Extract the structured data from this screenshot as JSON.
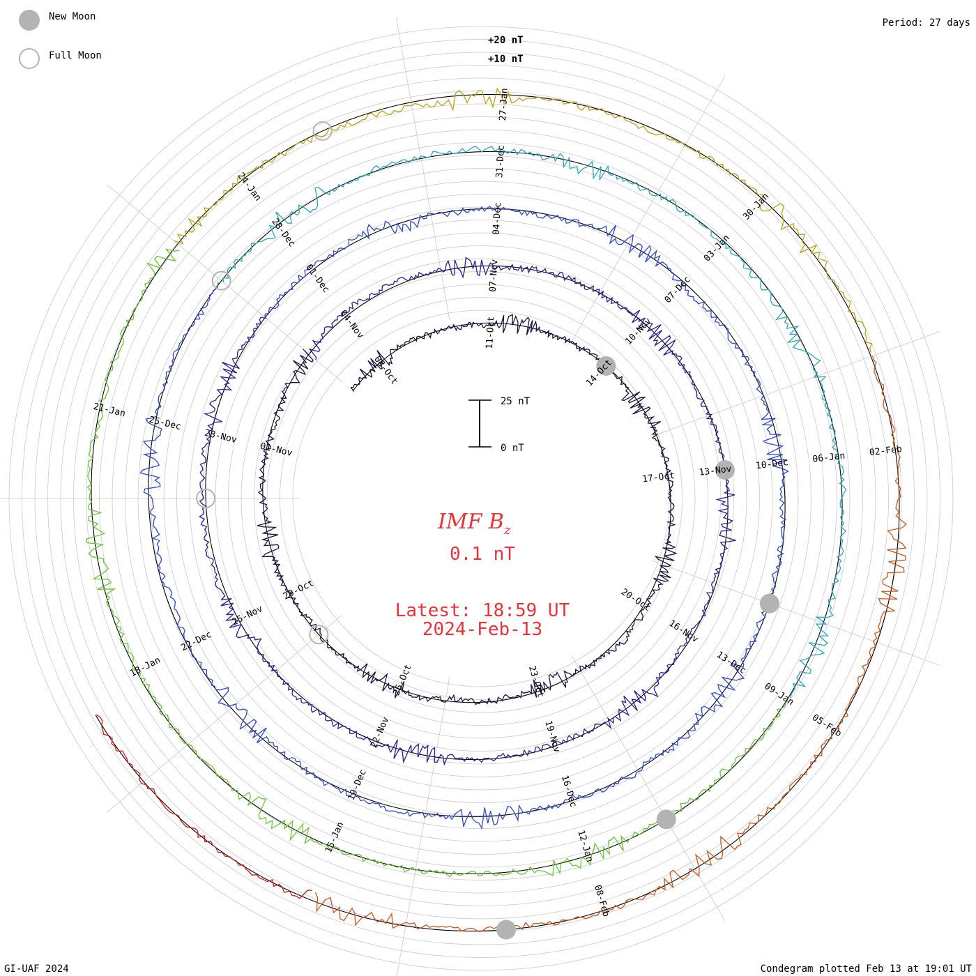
{
  "legend": {
    "new_moon_label": "New Moon",
    "full_moon_label": "Full Moon"
  },
  "header": {
    "period": "Period: 27 days"
  },
  "footer": {
    "credit": "GI-UAF 2024",
    "plotted": "Condegram plotted Feb 13 at 19:01 UT"
  },
  "scale": {
    "plus20": "+20 nT",
    "plus10": "+10 nT",
    "bar_top": "25 nT",
    "bar_bottom": "0 nT"
  },
  "center": {
    "title": "IMF B",
    "title_sub": "z",
    "value": "0.1 nT",
    "latest": "Latest: 18:59 UT",
    "date": "2024-Feb-13"
  },
  "colors": {
    "rotations": [
      "#1c0f3c",
      "#2b1c8f",
      "#2e47c8",
      "#2ea7b4",
      "#6dc23a",
      "#b6a31b",
      "#c4571c"
    ],
    "last_segment": "#c31a14",
    "moon_new": "#b3b3b3",
    "moon_full": "#b3b3b3",
    "grid": "#c8c8c8",
    "text_red": "#e8333b"
  },
  "chart_data": {
    "type": "condegram",
    "title": "IMF Bz",
    "period_days": 27,
    "units": "nT",
    "current_value_nT": 0.1,
    "latest_time": "18:59 UT",
    "latest_date": "2024-Feb-13",
    "scale_labels": [
      "+20 nT",
      "+10 nT"
    ],
    "rotations": [
      {
        "index": 0,
        "start": "2023-Oct-07",
        "end": "2023-Nov-03",
        "date_labels": [
          "08-Oct",
          "11-Oct",
          "14-Oct",
          "17-Oct",
          "20-Oct",
          "23-Oct",
          "26-Oct",
          "29-Oct",
          "01-Nov"
        ]
      },
      {
        "index": 1,
        "start": "2023-Nov-03",
        "end": "2023-Nov-30",
        "date_labels": [
          "04-Nov",
          "07-Nov",
          "10-Nov",
          "13-Nov",
          "16-Nov",
          "19-Nov",
          "22-Nov",
          "25-Nov",
          "28-Nov"
        ]
      },
      {
        "index": 2,
        "start": "2023-Nov-30",
        "end": "2023-Dec-27",
        "date_labels": [
          "01-Dec",
          "04-Dec",
          "07-Dec",
          "10-Dec",
          "13-Dec",
          "16-Dec",
          "19-Dec",
          "22-Dec",
          "25-Dec"
        ]
      },
      {
        "index": 3,
        "start": "2023-Dec-27",
        "end": "2024-Jan-23",
        "date_labels": [
          "28-Dec",
          "31-Dec",
          "03-Jan",
          "06-Jan",
          "09-Jan",
          "12-Jan",
          "15-Jan",
          "18-Jan",
          "21-Jan"
        ]
      },
      {
        "index": 4,
        "start": "2024-Jan-23",
        "end": "2024-Feb-13",
        "date_labels": [
          "24-Jan",
          "27-Jan",
          "30-Jan",
          "02-Feb",
          "05-Feb",
          "08-Feb"
        ]
      }
    ],
    "new_moons": [
      "2023-Oct-14",
      "2023-Nov-13",
      "2023-Dec-12",
      "2024-Jan-11",
      "2024-Feb-09"
    ],
    "full_moons": [
      "2023-Oct-28",
      "2023-Nov-27",
      "2023-Dec-27",
      "2024-Jan-25"
    ]
  }
}
